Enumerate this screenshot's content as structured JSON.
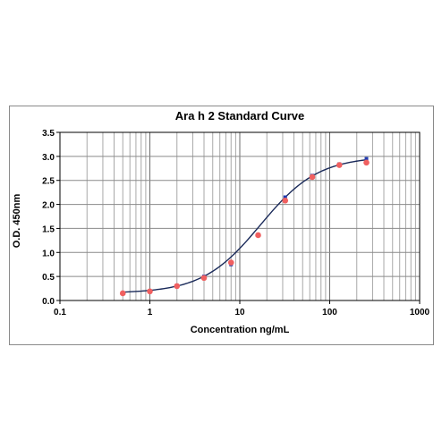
{
  "chart_data": {
    "type": "scatter",
    "title": "Ara h 2 Standard Curve",
    "xlabel": "Concentration ng/mL",
    "ylabel": "O.D. 450nm",
    "x_scale": "log",
    "xlim": [
      0.1,
      1000
    ],
    "ylim": [
      0,
      3.5
    ],
    "x_ticks": [
      "0.1",
      "1",
      "10",
      "100",
      "1000"
    ],
    "y_ticks": [
      "0.0",
      "0.5",
      "1.0",
      "1.5",
      "2.0",
      "2.5",
      "3.0",
      "3.5"
    ],
    "grid": true,
    "legend": "none",
    "series": [
      {
        "marker": "circle",
        "color": "#f06060",
        "points": [
          {
            "x": 0.5,
            "y": 0.15
          },
          {
            "x": 1,
            "y": 0.19
          },
          {
            "x": 2,
            "y": 0.3
          },
          {
            "x": 4,
            "y": 0.47
          },
          {
            "x": 8,
            "y": 0.79
          },
          {
            "x": 16,
            "y": 1.36
          },
          {
            "x": 32,
            "y": 2.08
          },
          {
            "x": 64,
            "y": 2.57
          },
          {
            "x": 128,
            "y": 2.82
          },
          {
            "x": 256,
            "y": 2.87
          }
        ]
      },
      {
        "marker": "square",
        "color": "#1f3ab0",
        "points": [
          {
            "x": 0.5,
            "y": 0.16
          },
          {
            "x": 1,
            "y": 0.2
          },
          {
            "x": 2,
            "y": 0.31
          },
          {
            "x": 4,
            "y": 0.5
          },
          {
            "x": 8,
            "y": 0.75
          },
          {
            "x": 16,
            "y": 1.37
          },
          {
            "x": 32,
            "y": 2.15
          },
          {
            "x": 64,
            "y": 2.6
          },
          {
            "x": 128,
            "y": 2.84
          },
          {
            "x": 256,
            "y": 2.95
          }
        ]
      }
    ],
    "fit_curve": {
      "type": "4PL",
      "color": "#1a2a5a",
      "bottom": 0.15,
      "top": 3.0,
      "ec50": 17,
      "hill": 1.35
    }
  }
}
